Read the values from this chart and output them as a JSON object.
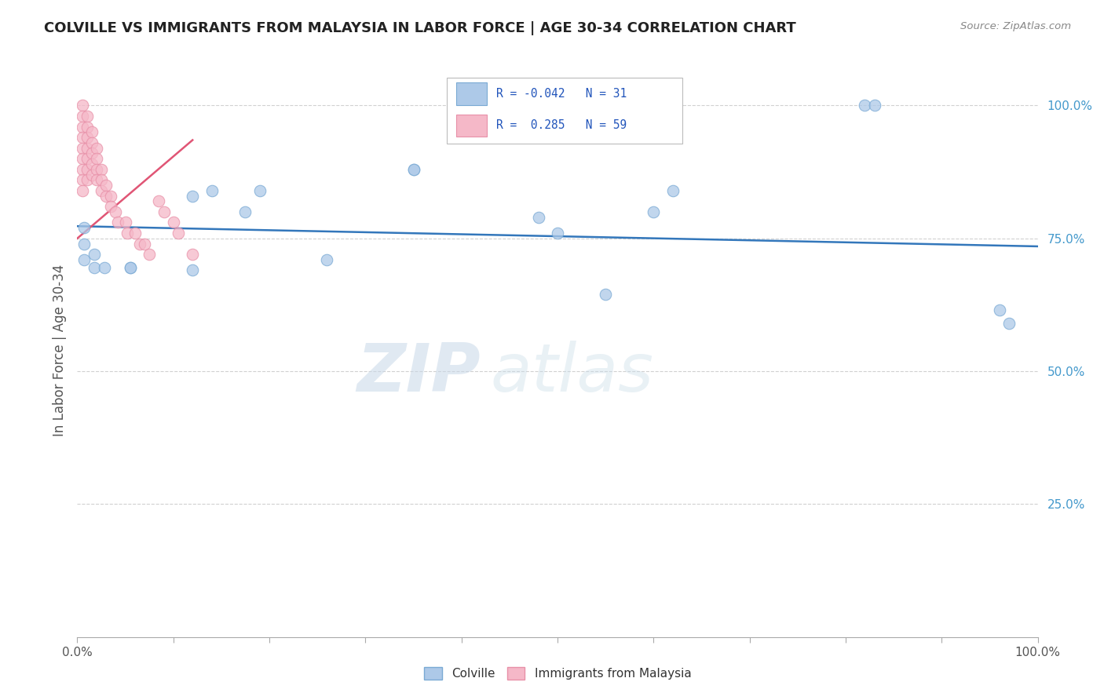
{
  "title": "COLVILLE VS IMMIGRANTS FROM MALAYSIA IN LABOR FORCE | AGE 30-34 CORRELATION CHART",
  "source": "Source: ZipAtlas.com",
  "ylabel": "In Labor Force | Age 30-34",
  "xlim": [
    0.0,
    1.0
  ],
  "ylim": [
    0.0,
    1.08
  ],
  "y_tick_positions": [
    0.25,
    0.5,
    0.75,
    1.0
  ],
  "y_tick_labels": [
    "25.0%",
    "50.0%",
    "75.0%",
    "100.0%"
  ],
  "colville_color": "#adc9e8",
  "colville_edge": "#7aaad4",
  "malaysia_color": "#f5b8c8",
  "malaysia_edge": "#e890a8",
  "trend_colville_color": "#3377bb",
  "trend_malaysia_color": "#e05575",
  "legend_r_colville": "-0.042",
  "legend_n_colville": "31",
  "legend_r_malaysia": "0.285",
  "legend_n_malaysia": "59",
  "watermark_zip": "ZIP",
  "watermark_atlas": "atlas",
  "colville_x": [
    0.007,
    0.007,
    0.007,
    0.018,
    0.018,
    0.028,
    0.055,
    0.055,
    0.12,
    0.14,
    0.175,
    0.19,
    0.35,
    0.35,
    0.48,
    0.5,
    0.62,
    0.82,
    0.83,
    0.96,
    0.97,
    0.12,
    0.26,
    0.55,
    0.6
  ],
  "colville_y": [
    0.77,
    0.74,
    0.71,
    0.72,
    0.695,
    0.695,
    0.695,
    0.695,
    0.83,
    0.84,
    0.8,
    0.84,
    0.88,
    0.88,
    0.79,
    0.76,
    0.84,
    1.0,
    1.0,
    0.615,
    0.59,
    0.69,
    0.71,
    0.645,
    0.8
  ],
  "malaysia_x": [
    0.005,
    0.005,
    0.005,
    0.005,
    0.005,
    0.005,
    0.005,
    0.005,
    0.005,
    0.01,
    0.01,
    0.01,
    0.01,
    0.01,
    0.01,
    0.01,
    0.015,
    0.015,
    0.015,
    0.015,
    0.015,
    0.02,
    0.02,
    0.02,
    0.02,
    0.025,
    0.025,
    0.025,
    0.03,
    0.03,
    0.035,
    0.035,
    0.04,
    0.042,
    0.05,
    0.052,
    0.06,
    0.065,
    0.07,
    0.075,
    0.085,
    0.09,
    0.1,
    0.105,
    0.12
  ],
  "malaysia_y": [
    1.0,
    0.98,
    0.96,
    0.94,
    0.92,
    0.9,
    0.88,
    0.86,
    0.84,
    0.98,
    0.96,
    0.94,
    0.92,
    0.9,
    0.88,
    0.86,
    0.95,
    0.93,
    0.91,
    0.89,
    0.87,
    0.92,
    0.9,
    0.88,
    0.86,
    0.88,
    0.86,
    0.84,
    0.85,
    0.83,
    0.83,
    0.81,
    0.8,
    0.78,
    0.78,
    0.76,
    0.76,
    0.74,
    0.74,
    0.72,
    0.82,
    0.8,
    0.78,
    0.76,
    0.72
  ],
  "colville_trend_x": [
    0.0,
    1.0
  ],
  "colville_trend_y": [
    0.773,
    0.735
  ],
  "malaysia_trend_x": [
    0.0,
    0.12
  ],
  "malaysia_trend_y": [
    0.75,
    0.935
  ]
}
